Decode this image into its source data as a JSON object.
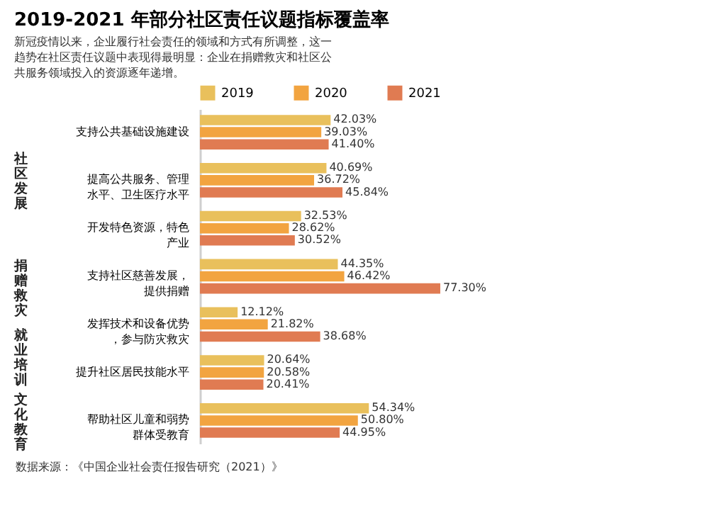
{
  "chart_data": {
    "type": "bar",
    "orientation": "horizontal",
    "title": "2019-2021 年部分社区责任议题指标覆盖率",
    "subtitle": "新冠疫情以来，企业履行社会责任的领域和方式有所调整，这一趋势在社区责任议题中表现得最明显：企业在捐赠救灾和社区公共服务领域投入的资源逐年递增。",
    "categories": [
      "支持公共基础设施建设",
      "提高公共服务、管理水平、卫生医疗水平",
      "开发特色资源，特色产业",
      "支持社区慈善发展，提供捐赠",
      "发挥技术和设备优势，参与防灾救灾",
      "提升社区居民技能水平",
      "帮助社区儿童和弱势群体受教育"
    ],
    "series": [
      {
        "name": "2019",
        "color": "#e9c05c",
        "values": [
          42.03,
          40.69,
          32.53,
          44.35,
          12.12,
          20.64,
          54.34
        ],
        "value_labels": [
          "42.03%",
          "40.69%",
          "32.53%",
          "44.35%",
          "12.12%",
          "20.64%",
          "54.34%"
        ]
      },
      {
        "name": "2020",
        "color": "#f2a440",
        "values": [
          39.03,
          36.72,
          28.62,
          46.42,
          21.82,
          20.58,
          50.8
        ],
        "value_labels": [
          "39.03%",
          "36.72%",
          "28.62%",
          "46.42%",
          "21.82%",
          "20.58%",
          "50.80%"
        ]
      },
      {
        "name": "2021",
        "color": "#e07b52",
        "values": [
          41.4,
          45.84,
          30.52,
          77.3,
          38.68,
          20.41,
          44.95
        ],
        "value_labels": [
          "41.40%",
          "45.84%",
          "30.52%",
          "77.30%",
          "38.68%",
          "20.41%",
          "44.95%"
        ]
      }
    ],
    "legend": "top left",
    "annotations": [
      "社区发展",
      "捐赠救灾",
      "就业培训",
      "文化教育",
      "数据来源：《中国企业社会责任报告研究（2021）》"
    ]
  }
}
